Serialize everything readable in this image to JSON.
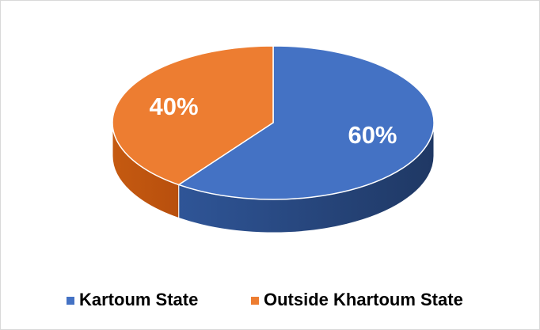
{
  "chart_data": {
    "type": "pie",
    "categories": [
      "Kartoum State",
      "Outside Khartoum State"
    ],
    "values": [
      60,
      40
    ],
    "value_labels": [
      "60%",
      "40%"
    ],
    "colors": [
      "#4472c4",
      "#ed7d31"
    ],
    "legend": "bottom"
  }
}
